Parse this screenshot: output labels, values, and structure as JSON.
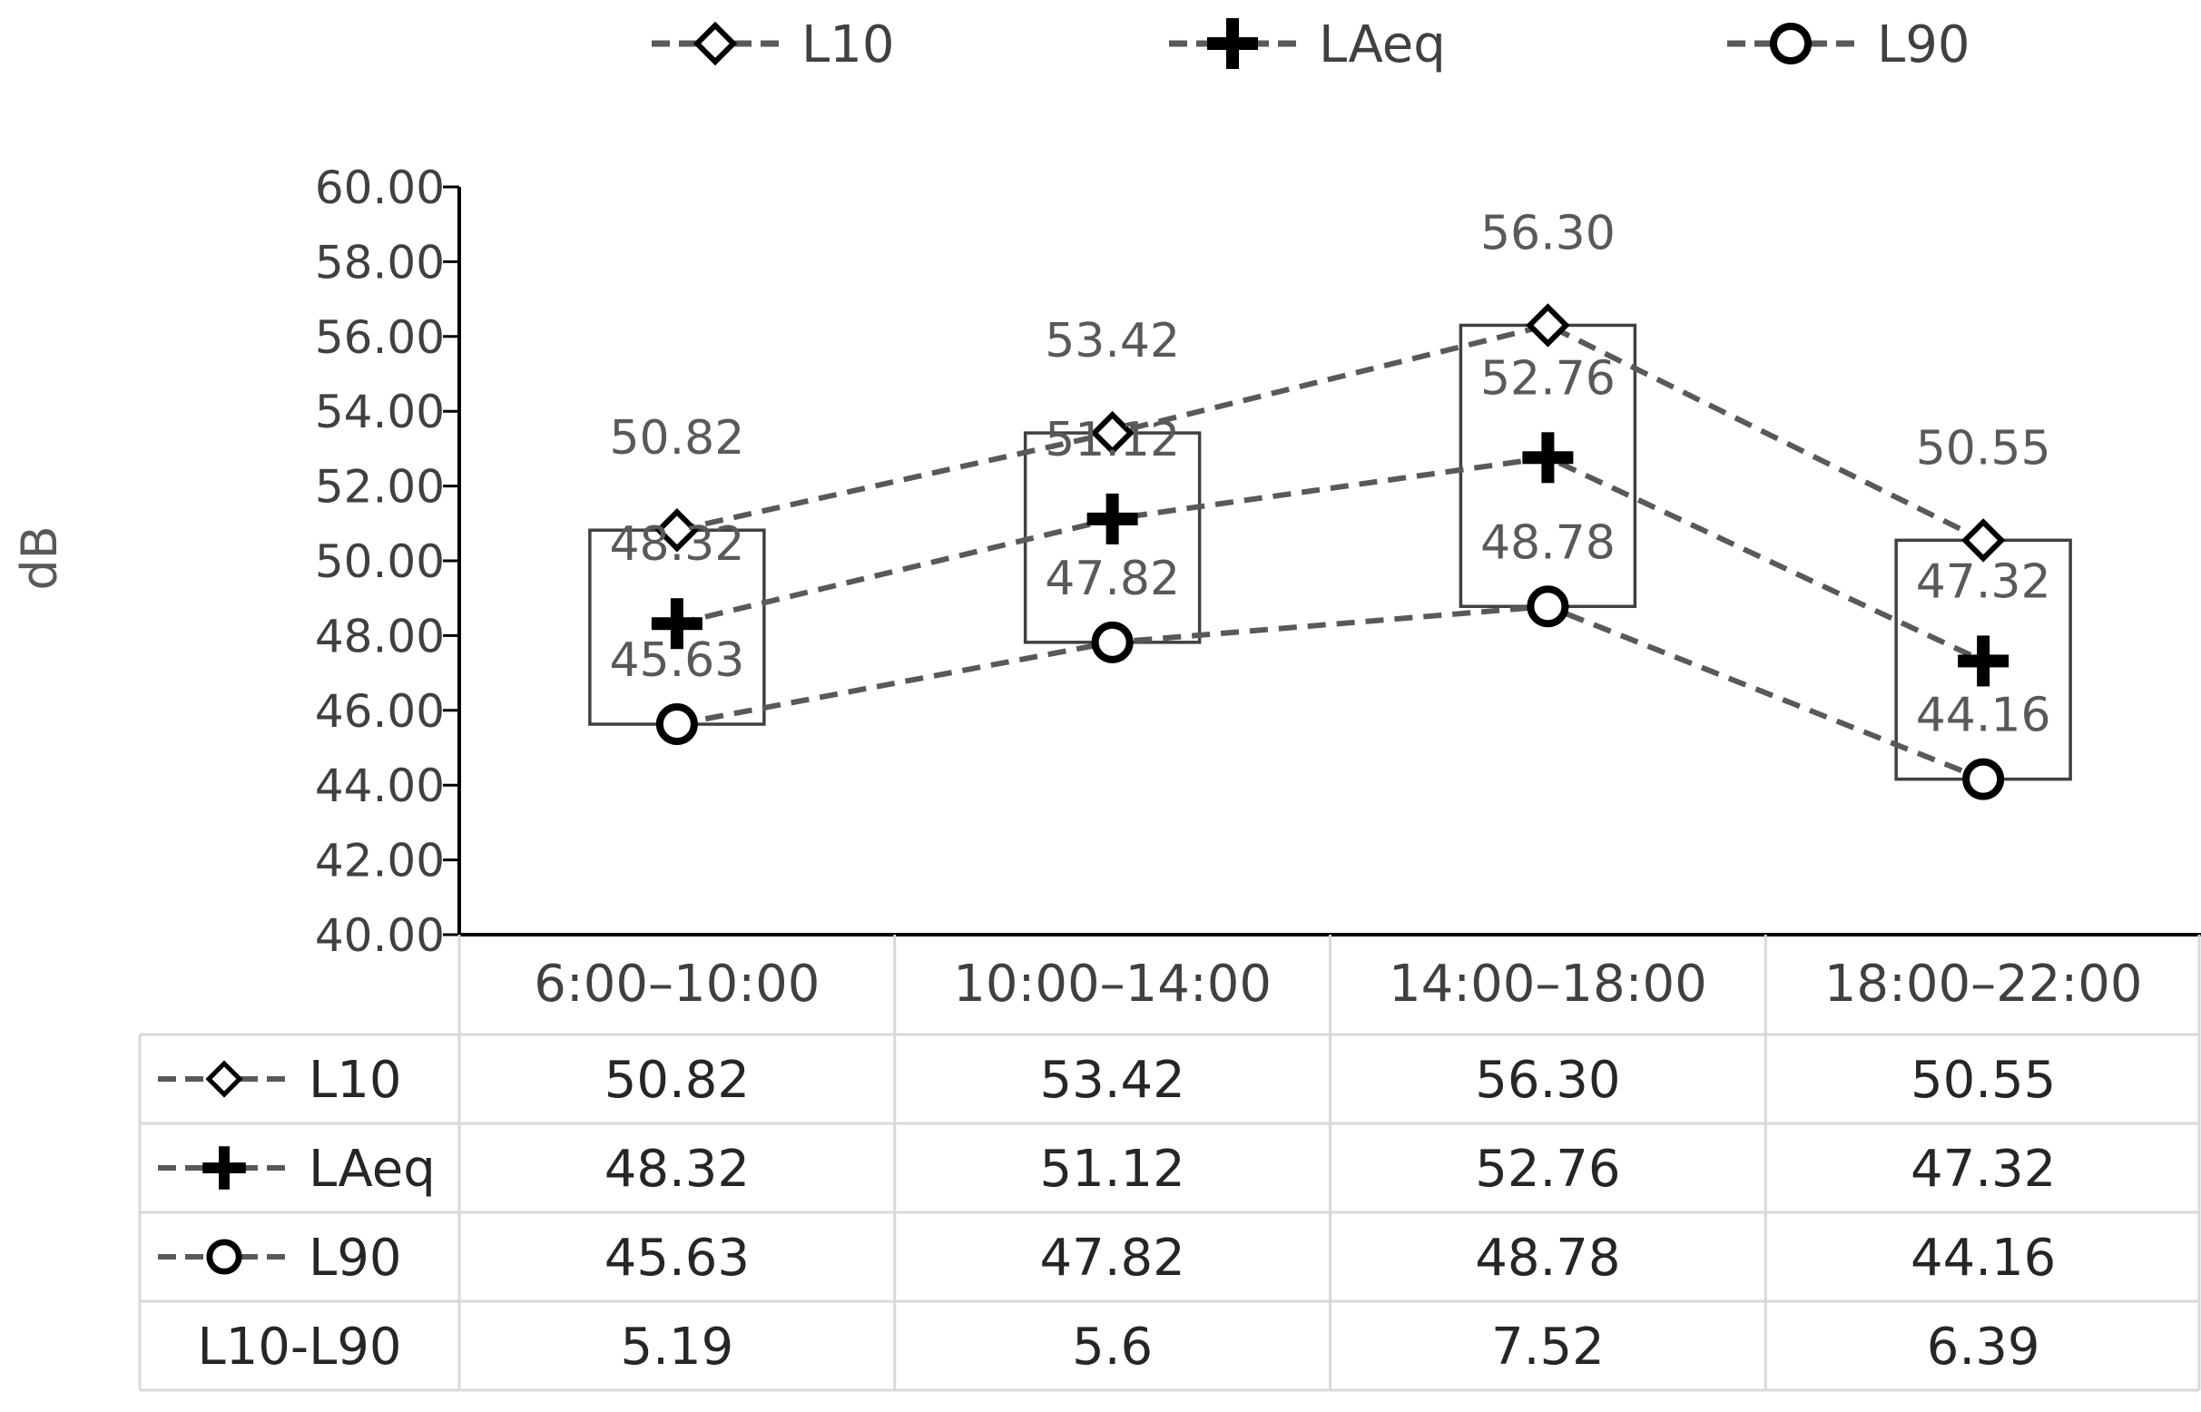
{
  "chart_data": {
    "type": "line",
    "ylabel": "dB",
    "xlabel": "",
    "title": "",
    "ylim": [
      40,
      60
    ],
    "ytick_step": 2,
    "ytick_decimals": 2,
    "categories": [
      "6:00–10:00",
      "10:00–14:00",
      "14:00–18:00",
      "18:00–22:00"
    ],
    "series": [
      {
        "name": "L10",
        "marker": "diamond-open",
        "values": [
          50.82,
          53.42,
          56.3,
          50.55
        ],
        "value_labels": [
          "50.82",
          "53.42",
          "56.30",
          "50.55"
        ]
      },
      {
        "name": "LAeq",
        "marker": "plus",
        "values": [
          48.32,
          51.12,
          52.76,
          47.32
        ],
        "value_labels": [
          "48.32",
          "51.12",
          "52.76",
          "47.32"
        ]
      },
      {
        "name": "L90",
        "marker": "circle-open",
        "values": [
          45.63,
          47.82,
          48.78,
          44.16
        ],
        "value_labels": [
          "45.63",
          "47.82",
          "48.78",
          "44.16"
        ]
      }
    ],
    "extra_row": {
      "name": "L10-L90",
      "values": [
        "5.19",
        "5.6",
        "7.52",
        "6.39"
      ]
    },
    "legend": "top",
    "grid": false,
    "line_style": "dashed",
    "colors": {
      "line": "#595959",
      "marker": "#000000",
      "box": "#404040",
      "table_border": "#d9d9d9"
    }
  }
}
